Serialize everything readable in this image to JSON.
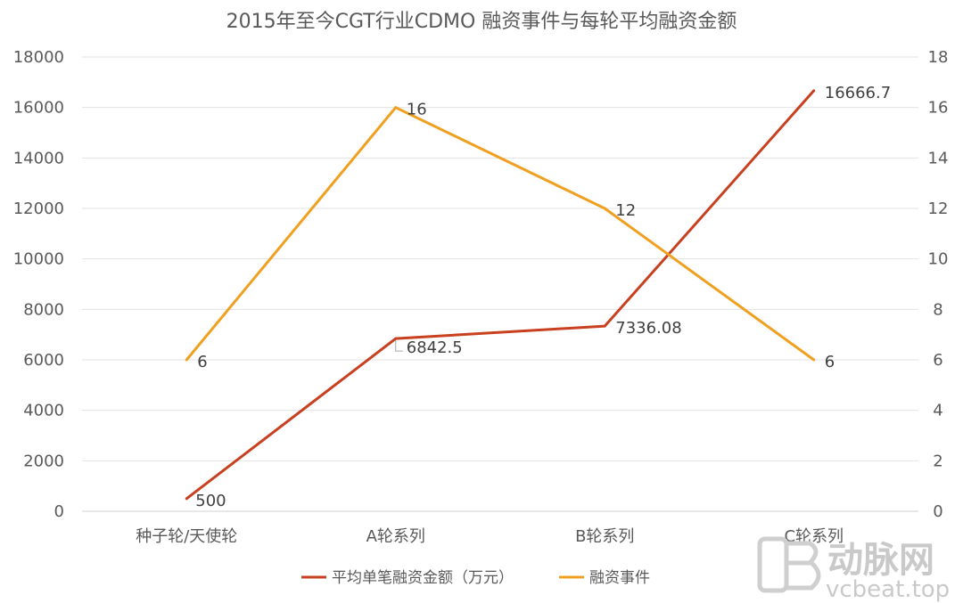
{
  "chart_data": {
    "type": "line",
    "title": "2015年至今CGT行业CDMO 融资事件与每轮平均融资金额",
    "categories": [
      "种子轮/天使轮",
      "A轮系列",
      "B轮系列",
      "C轮系列"
    ],
    "series": [
      {
        "name": "平均单笔融资金额（万元）",
        "axis": "left",
        "color": "#c8401f",
        "values": [
          500,
          6842.5,
          7336.08,
          16666.7
        ],
        "labels": [
          "500",
          "6842.5",
          "7336.08",
          "16666.7"
        ]
      },
      {
        "name": "融资事件",
        "axis": "right",
        "color": "#f0a020",
        "values": [
          6,
          16,
          12,
          6
        ],
        "labels": [
          "6",
          "16",
          "12",
          "6"
        ]
      }
    ],
    "y_left": {
      "min": 0,
      "max": 18000,
      "step": 2000,
      "ticks": [
        "0",
        "2000",
        "4000",
        "6000",
        "8000",
        "10000",
        "12000",
        "14000",
        "16000",
        "18000"
      ]
    },
    "y_right": {
      "min": 0,
      "max": 18,
      "step": 2,
      "ticks": [
        "0",
        "2",
        "4",
        "6",
        "8",
        "10",
        "12",
        "14",
        "16",
        "18"
      ]
    },
    "grid": true,
    "legend_position": "bottom"
  },
  "watermark": {
    "logo_text": "动脉网",
    "url_text": "vcbeat.top"
  }
}
